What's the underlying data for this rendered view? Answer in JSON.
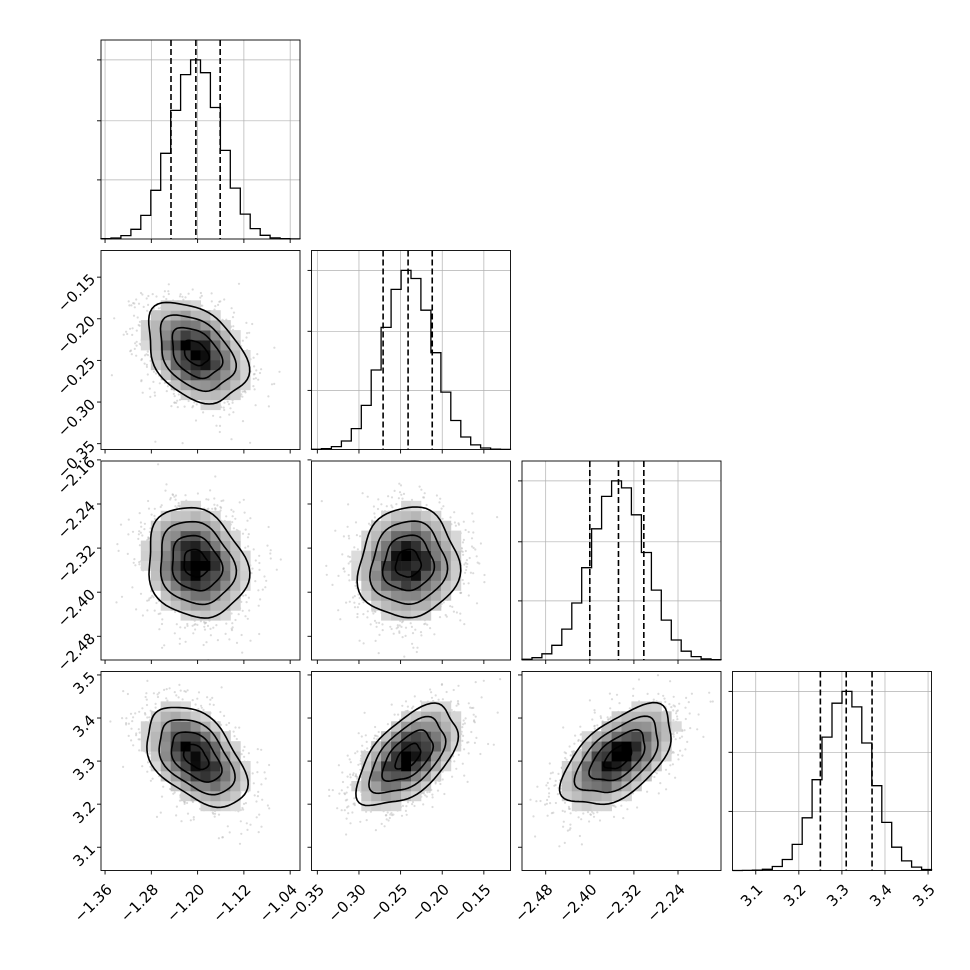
{
  "chart_data": {
    "type": "corner",
    "description": "posterior corner plot of 4 parameters",
    "parameters": [
      {
        "ticks": [
          -1.36,
          -1.28,
          -1.2,
          -1.12,
          -1.04
        ],
        "tick_labels": [
          "−1.36",
          "−1.28",
          "−1.20",
          "−1.12",
          "−1.04"
        ],
        "range": [
          -1.367,
          -1.023
        ],
        "median": -1.203,
        "q16": -1.246,
        "q84": -1.161,
        "sigma": 0.043
      },
      {
        "ticks": [
          -0.35,
          -0.3,
          -0.25,
          -0.2,
          -0.15
        ],
        "tick_labels": [
          "−0.35",
          "−0.30",
          "−0.25",
          "−0.20",
          "−0.15"
        ],
        "range": [
          -0.357,
          -0.118
        ],
        "median": -0.241,
        "q16": -0.271,
        "q84": -0.212,
        "sigma": 0.03
      },
      {
        "ticks": [
          -2.48,
          -2.4,
          -2.32,
          -2.24,
          -2.16
        ],
        "tick_labels": [
          "−2.48",
          "−2.40",
          "−2.32",
          "−2.24",
          "−2.16"
        ],
        "range": [
          -2.523,
          -2.162
        ],
        "median": -2.348,
        "q16": -2.4,
        "q84": -2.302,
        "sigma": 0.05
      },
      {
        "ticks": [
          3.1,
          3.2,
          3.3,
          3.4,
          3.5
        ],
        "tick_labels": [
          "3.1",
          "3.2",
          "3.3",
          "3.4",
          "3.5"
        ],
        "range": [
          3.046,
          3.508
        ],
        "median": 3.31,
        "q16": 3.25,
        "q84": 3.37,
        "sigma": 0.058
      }
    ],
    "correlations": {
      "1-0": -0.35,
      "2-0": -0.15,
      "2-1": 0.05,
      "3-0": -0.45,
      "3-1": 0.55,
      "3-2": 0.55
    },
    "contour_levels_sigma": [
      0.5,
      1.0,
      1.5,
      2.0
    ],
    "histogram_bins": 20,
    "grid": true,
    "quantile_lines": "dashed",
    "colors": {
      "line": "#000000",
      "scatter": "#bdbdbd",
      "grid": "#b0b0b0",
      "density_max": "#000000",
      "density_min": "#f2f2f2"
    }
  }
}
